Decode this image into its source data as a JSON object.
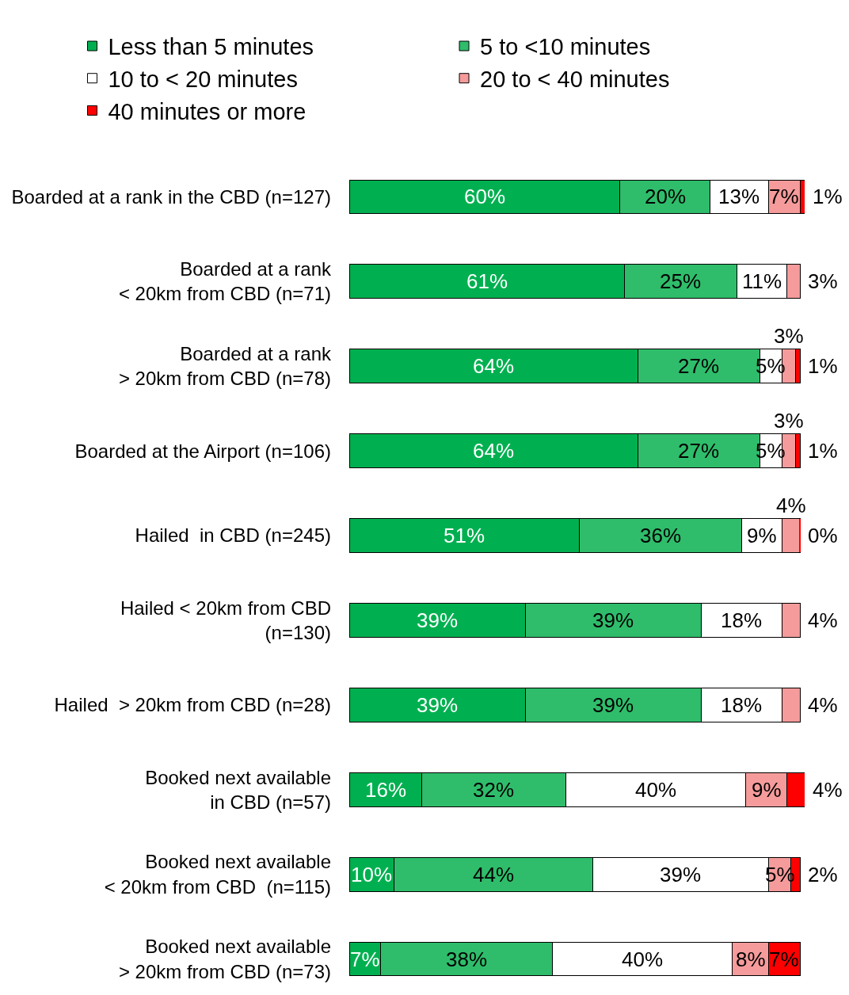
{
  "chart_data": {
    "type": "bar",
    "orientation": "horizontal",
    "stacked": true,
    "legend": "top",
    "tick_labels": "y",
    "xlim": [
      0,
      101
    ],
    "categories": [
      "Boarded at a rank in the CBD (n=127)",
      "Boarded at a rank\n< 20km from CBD (n=71)",
      "Boarded at a rank\n> 20km from CBD (n=78)",
      "Boarded at the Airport (n=106)",
      "Hailed  in CBD (n=245)",
      "Hailed < 20km from CBD\n(n=130)",
      "Hailed  > 20km from CBD (n=28)",
      "Booked next available\nin CBD (n=57)",
      "Booked next available\n< 20km from CBD  (n=115)",
      "Booked next available\n> 20km from CBD (n=73)"
    ],
    "series": [
      {
        "name": "Less than 5 minutes",
        "color": "#00b050",
        "values": [
          60,
          61,
          64,
          64,
          51,
          39,
          39,
          16,
          10,
          7
        ],
        "value_labels": [
          "60%",
          "61%",
          "64%",
          "64%",
          "51%",
          "39%",
          "39%",
          "16%",
          "10%",
          "7%"
        ]
      },
      {
        "name": "5 to <10 minutes",
        "color": "#2fbd6b",
        "values": [
          20,
          25,
          27,
          27,
          36,
          39,
          39,
          32,
          44,
          38
        ],
        "value_labels": [
          "20%",
          "25%",
          "27%",
          "27%",
          "36%",
          "39%",
          "39%",
          "32%",
          "44%",
          "38%"
        ]
      },
      {
        "name": "10 to < 20 minutes",
        "color": "#ffffff",
        "values": [
          13,
          11,
          5,
          5,
          9,
          18,
          18,
          40,
          39,
          40
        ],
        "value_labels": [
          "13%",
          "11%",
          "5%",
          "5%",
          "9%",
          "18%",
          "18%",
          "40%",
          "39%",
          "40%"
        ]
      },
      {
        "name": "20 to < 40 minutes",
        "color": "#f59b9b",
        "values": [
          7,
          3,
          3,
          3,
          4,
          4,
          4,
          9,
          5,
          8
        ],
        "value_labels": [
          "7%",
          "3%",
          "3%",
          "3%",
          "4%",
          "4%",
          "4%",
          "9%",
          "5%",
          "8%"
        ]
      },
      {
        "name": "40 minutes or more",
        "color": "#ff0000",
        "values": [
          1,
          null,
          1,
          1,
          0,
          null,
          null,
          4,
          2,
          7
        ],
        "value_labels": [
          "1%",
          null,
          "1%",
          "1%",
          "0%",
          null,
          null,
          "4%",
          "2%",
          "7%"
        ]
      }
    ]
  }
}
